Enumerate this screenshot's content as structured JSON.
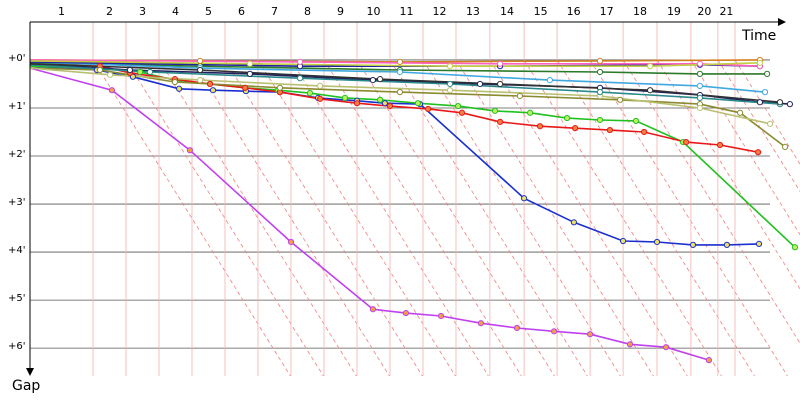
{
  "chart_data": {
    "type": "line",
    "x_label": "Time",
    "y_label": "Gap",
    "xlim": [
      0,
      25.5
    ],
    "ylim": [
      -0.79,
      6.58
    ],
    "grid": true,
    "xticks": [
      {
        "value": 2.1,
        "label": "1"
      },
      {
        "value": 3.2,
        "label": "2"
      },
      {
        "value": 4.3,
        "label": "3"
      },
      {
        "value": 5.4,
        "label": "4"
      },
      {
        "value": 6.5,
        "label": "5"
      },
      {
        "value": 7.6,
        "label": "6"
      },
      {
        "value": 8.7,
        "label": "7"
      },
      {
        "value": 9.8,
        "label": "8"
      },
      {
        "value": 10.9,
        "label": "9"
      },
      {
        "value": 12,
        "label": "10"
      },
      {
        "value": 13.1,
        "label": "11"
      },
      {
        "value": 14.2,
        "label": "12"
      },
      {
        "value": 15.33,
        "label": "13"
      },
      {
        "value": 16.47,
        "label": "14"
      },
      {
        "value": 17.57,
        "label": "15"
      },
      {
        "value": 18.67,
        "label": "16"
      },
      {
        "value": 19.77,
        "label": "17"
      },
      {
        "value": 20.9,
        "label": "18"
      },
      {
        "value": 22.03,
        "label": "19"
      },
      {
        "value": 22.93,
        "label": "20"
      },
      {
        "value": 23.5,
        "label": "21"
      }
    ],
    "yticks": [
      {
        "value": 0,
        "label": "+0'"
      },
      {
        "value": 1,
        "label": "+1'"
      },
      {
        "value": 2,
        "label": "+2'"
      },
      {
        "value": 3,
        "label": "+3'"
      },
      {
        "value": 4,
        "label": "+4'"
      },
      {
        "value": 5,
        "label": "+5'"
      },
      {
        "value": 6,
        "label": "+6'"
      }
    ],
    "series": [
      {
        "color": "#c040f0",
        "marker_fill": "#f0a040",
        "x": [
          0,
          2.73,
          5.33,
          8.7,
          11.43,
          12.53,
          13.7,
          15.03,
          16.23,
          17.47,
          18.67,
          20,
          21.2,
          22.63
        ],
        "values": [
          0.17,
          0.63,
          1.88,
          3.79,
          5.19,
          5.27,
          5.33,
          5.48,
          5.58,
          5.65,
          5.71,
          5.92,
          5.98,
          6.25
        ]
      },
      {
        "color": "#1a2fd0",
        "marker_fill": "#f0e060",
        "x": [
          0,
          2.23,
          3.43,
          4.97,
          6.1,
          7.2,
          8.33,
          9.6,
          10.9,
          11.83,
          13,
          16.47,
          18.13,
          19.77,
          20.9,
          22.1,
          23.23,
          24.3
        ],
        "values": [
          0.13,
          0.21,
          0.35,
          0.6,
          0.63,
          0.65,
          0.67,
          0.79,
          0.85,
          0.9,
          0.92,
          2.88,
          3.38,
          3.77,
          3.79,
          3.85,
          3.85,
          3.83
        ]
      },
      {
        "color": "#20c020",
        "marker_fill": "#c0f060",
        "x": [
          0,
          2.33,
          3.67,
          4.83,
          6,
          7.17,
          8.27,
          9.33,
          10.5,
          11.67,
          12.93,
          14.27,
          15.5,
          16.67,
          17.9,
          19,
          20.2,
          21.77,
          25.5
        ],
        "values": [
          0.13,
          0.17,
          0.25,
          0.42,
          0.5,
          0.58,
          0.63,
          0.69,
          0.79,
          0.83,
          0.9,
          0.96,
          1.06,
          1.1,
          1.21,
          1.25,
          1.27,
          1.71,
          3.9
        ]
      },
      {
        "color": "#e81818",
        "marker_fill": "#f08040",
        "x": [
          0,
          2.33,
          3.33,
          4.83,
          6,
          7.17,
          8.33,
          9.67,
          10.9,
          12,
          13.27,
          14.4,
          15.67,
          17,
          18.17,
          19.33,
          20.47,
          21.87,
          23,
          24.27
        ],
        "values": [
          0.08,
          0.13,
          0.27,
          0.4,
          0.5,
          0.58,
          0.67,
          0.81,
          0.9,
          0.96,
          1.02,
          1.1,
          1.29,
          1.38,
          1.42,
          1.46,
          1.5,
          1.71,
          1.77,
          1.92
        ]
      },
      {
        "color": "#8a8a30",
        "marker_fill": "#ffffff",
        "x": [
          0,
          2.33,
          4.83,
          8.33,
          12.33,
          16.33,
          19.67,
          22.33,
          23.67,
          25.17
        ],
        "values": [
          0.17,
          0.21,
          0.46,
          0.58,
          0.67,
          0.75,
          0.83,
          0.92,
          1.1,
          1.81
        ]
      },
      {
        "color": "#b8c070",
        "marker_fill": "#ffffff",
        "x": [
          0,
          2.67,
          5.67,
          9.67,
          14,
          19,
          22.33,
          24.67
        ],
        "values": [
          0.17,
          0.31,
          0.42,
          0.54,
          0.63,
          0.75,
          1,
          1.33
        ]
      },
      {
        "color": "#202060",
        "marker_fill": "#ffffff",
        "x": [
          0,
          3.33,
          7.33,
          11.43,
          15,
          19,
          22.33,
          24.33,
          25.33
        ],
        "values": [
          0.08,
          0.21,
          0.29,
          0.42,
          0.5,
          0.58,
          0.73,
          0.88,
          0.92
        ]
      },
      {
        "color": "#2a8a8a",
        "marker_fill": "#ffffff",
        "x": [
          0,
          4,
          9,
          14,
          19,
          22.33,
          25
        ],
        "values": [
          0.1,
          0.25,
          0.38,
          0.5,
          0.67,
          0.79,
          0.92
        ]
      },
      {
        "color": "#2a7a2a",
        "marker_fill": "#ffffff",
        "x": [
          0,
          5.67,
          12.33,
          19,
          22.33,
          24.57
        ],
        "values": [
          0.06,
          0.13,
          0.21,
          0.25,
          0.29,
          0.29
        ]
      },
      {
        "color": "#40a8e0",
        "marker_fill": "#ffffff",
        "x": [
          0,
          5.67,
          12.33,
          17.33,
          22.33,
          24.5
        ],
        "values": [
          0.04,
          0.17,
          0.25,
          0.42,
          0.54,
          0.67
        ]
      },
      {
        "color": "#2020a0",
        "marker_fill": "#ffffff",
        "x": [
          0,
          9,
          15.67,
          22.33,
          24.33
        ],
        "values": [
          0.04,
          0.13,
          0.13,
          0.1,
          0.13
        ]
      },
      {
        "color": "#d08020",
        "marker_fill": "#ffffff",
        "x": [
          0,
          5.67,
          12.33,
          19,
          24.33
        ],
        "values": [
          0,
          0.02,
          0.04,
          0.02,
          0
        ]
      },
      {
        "color": "#ff60c0",
        "marker_fill": "#ffffff",
        "x": [
          0,
          9,
          15.67,
          22.33,
          24.33
        ],
        "values": [
          0,
          0.04,
          0.08,
          0.08,
          0.13
        ]
      },
      {
        "color": "#303030",
        "marker_fill": "#ffffff",
        "x": [
          0,
          5.67,
          11.67,
          15.67,
          20.67,
          25
        ],
        "values": [
          0.08,
          0.21,
          0.4,
          0.5,
          0.63,
          0.88
        ]
      },
      {
        "color": "#c0d040",
        "marker_fill": "#ffffff",
        "x": [
          0,
          7.33,
          14,
          20.67,
          24.33
        ],
        "values": [
          0.02,
          0.08,
          0.13,
          0.13,
          0.06
        ]
      }
    ]
  }
}
